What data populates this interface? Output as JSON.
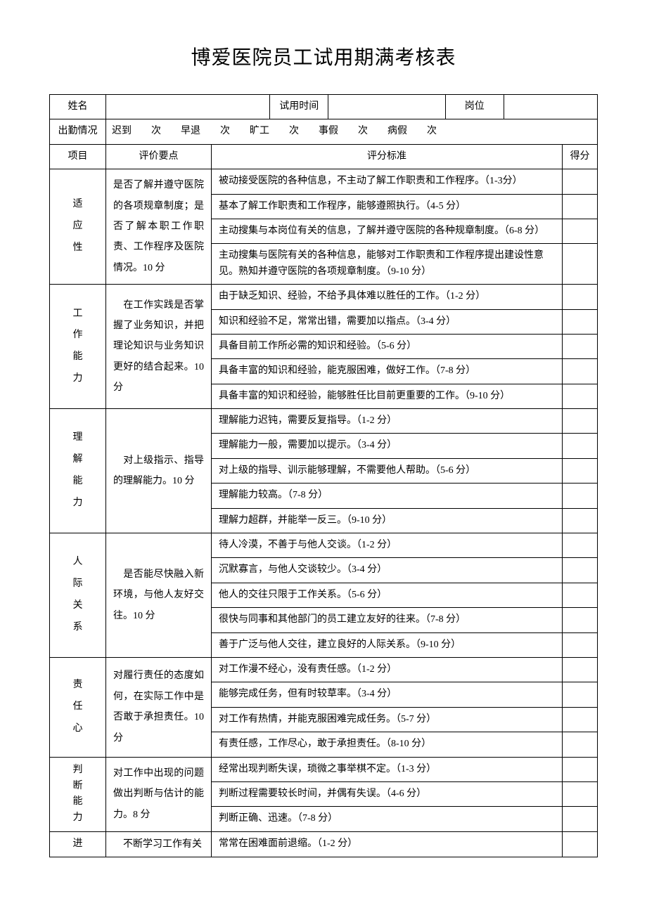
{
  "title": "博爱医院员工试用期满考核表",
  "header": {
    "name_label": "姓名",
    "trial_label": "试用时间",
    "position_label": "岗位",
    "attendance_label": "出勤情况",
    "attendance_text": "迟到　　次　　早退　　次　　旷工　　次　　事假　　次　　病假　　次",
    "item_label": "项目",
    "eval_label": "评价要点",
    "criteria_label": "评分标准",
    "score_label": "得分"
  },
  "sections": [
    {
      "name": "适应性",
      "eval": "是否了解并遵守医院的各项规章制度；是否了解本职工作职责、工作程序及医院情况。10 分",
      "criteria": [
        "被动接受医院的各种信息，不主动了解工作职责和工作程序。（1-3分）",
        "基本了解工作职责和工作程序，能够遵照执行。（4-5 分）",
        "主动搜集与本岗位有关的信息，了解并遵守医院的各种规章制度。（6-8 分）",
        "主动搜集与医院有关的各种信息，能够对工作职责和工作程序提出建设性意见。熟知并遵守医院的各项规章制度。（9-10 分）"
      ]
    },
    {
      "name": "工作能力",
      "eval": "　在工作实践是否掌握了业务知识，并把理论知识与业务知识更好的结合起来。10 分",
      "criteria": [
        "由于缺乏知识、经验，不给予具体难以胜任的工作。（1-2 分）",
        "知识和经验不足，常常出错，需要加以指点。（3-4 分）",
        "具备目前工作所必需的知识和经验。（5-6 分）",
        "具备丰富的知识和经验，能克服困难，做好工作。（7-8 分）",
        "具备丰富的知识和经验，能够胜任比目前更重要的工作。（9-10 分）"
      ]
    },
    {
      "name": "理解能力",
      "eval": "　对上级指示、指导的理解能力。10 分",
      "criteria": [
        "理解能力迟钝，需要反复指导。（1-2 分）",
        "理解能力一般，需要加以提示。（3-4 分）",
        "对上级的指导、训示能够理解，不需要他人帮助。（5-6 分）",
        "理解能力较高。（7-8 分）",
        "理解力超群，并能举一反三。（9-10 分）"
      ]
    },
    {
      "name": "人际关系",
      "eval": "　是否能尽快融入新环境，与他人友好交往。10 分",
      "criteria": [
        "待人冷漠，不善于与他人交谈。（1-2 分）",
        "沉默寡言，与他人交谈较少。（3-4 分）",
        "他人的交往只限于工作关系。（5-6 分）",
        "很快与同事和其他部门的员工建立友好的往来。（7-8 分）",
        "善于广泛与他人交往，建立良好的人际关系。（9-10 分）"
      ]
    },
    {
      "name": "责任心",
      "eval": "对履行责任的态度如何，在实际工作中是否敢于承担责任。10 分",
      "criteria": [
        "对工作漫不经心，没有责任感。（1-2 分）",
        "能够完成任务，但有时较草率。（3-4 分）",
        "对工作有热情，并能克服困难完成任务。（5-7 分）",
        "有责任感，工作尽心，敢于承担责任。（8-10 分）"
      ]
    },
    {
      "name": "判断能力",
      "eval": "对工作中出现的问题做出判断与估计的能力。8 分",
      "criteria": [
        "经常出现判断失误，琐微之事举棋不定。（1-3 分）",
        "判断过程需要较长时间，并偶有失误。（4-6 分）",
        "判断正确、迅速。（7-8 分）"
      ]
    },
    {
      "name": "进",
      "eval": "　不断学习工作有关",
      "criteria": [
        "常常在困难面前退缩。（1-2 分）"
      ]
    }
  ]
}
